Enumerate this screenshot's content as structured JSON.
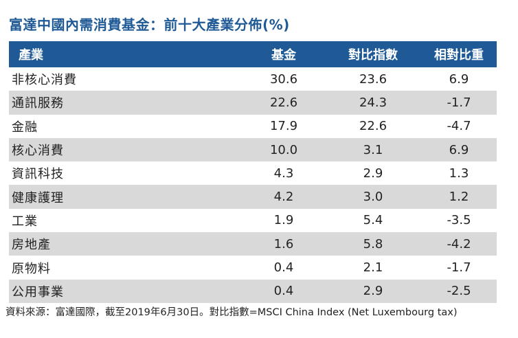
{
  "title": "富達中國內需消費基金：前十大產業分佈(%)",
  "colors": {
    "header_bg": "#1f5a96",
    "title": "#1f5a96",
    "shade": "#d9d9d9"
  },
  "chart_data": {
    "type": "table",
    "columns": [
      "產業",
      "基金",
      "對比指數",
      "相對比重"
    ],
    "rows": [
      [
        "非核心消費",
        "30.6",
        "23.6",
        "6.9"
      ],
      [
        "通訊服務",
        "22.6",
        "24.3",
        "-1.7"
      ],
      [
        "金融",
        "17.9",
        "22.6",
        "-4.7"
      ],
      [
        "核心消費",
        "10.0",
        "3.1",
        "6.9"
      ],
      [
        "資訊科技",
        "4.3",
        "2.9",
        "1.3"
      ],
      [
        "健康護理",
        "4.2",
        "3.0",
        "1.2"
      ],
      [
        "工業",
        "1.9",
        "5.4",
        "-3.5"
      ],
      [
        "房地產",
        "1.6",
        "5.8",
        "-4.2"
      ],
      [
        "原物料",
        "0.4",
        "2.1",
        "-1.7"
      ],
      [
        "公用事業",
        "0.4",
        "2.9",
        "-2.5"
      ]
    ]
  },
  "footnote": "資料來源：富達國際，截至2019年6月30日。對比指數=MSCI China Index (Net Luxembourg tax)"
}
